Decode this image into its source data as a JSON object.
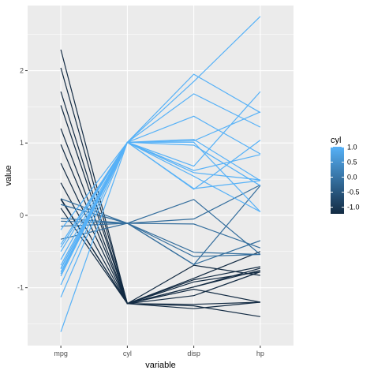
{
  "chart_data": {
    "type": "line",
    "subtype": "parallel-coordinates",
    "xlabel": "variable",
    "ylabel": "value",
    "categories": [
      "mpg",
      "cyl",
      "disp",
      "hp"
    ],
    "ylim": [
      -1.8,
      2.9
    ],
    "yticks": [
      -1,
      0,
      1,
      2
    ],
    "ytick_labels": [
      "-1",
      "0",
      "1",
      "2"
    ],
    "grid": true,
    "panel_background": "#ebebeb",
    "legend": {
      "title": "cyl",
      "placement": "right",
      "range": [
        -1.22,
        1.01
      ],
      "ticks": [
        1.0,
        0.5,
        0.0,
        -0.5,
        -1.0
      ],
      "tick_labels": [
        "1.0",
        "0.5",
        "0.0",
        "-0.5",
        "-1.0"
      ],
      "color_low": "#132B43",
      "color_high": "#56B1F7"
    },
    "series": [
      {
        "cyl": 1.01,
        "values": [
          -1.61,
          1.01,
          1.95,
          1.42
        ]
      },
      {
        "cyl": 1.01,
        "values": [
          -1.13,
          1.01,
          1.85,
          2.75
        ]
      },
      {
        "cyl": 1.01,
        "values": [
          -0.96,
          1.01,
          1.68,
          1.22
        ]
      },
      {
        "cyl": 1.01,
        "values": [
          -0.84,
          1.01,
          1.37,
          0.85
        ]
      },
      {
        "cyl": 1.01,
        "values": [
          -0.81,
          1.01,
          1.05,
          0.48
        ]
      },
      {
        "cyl": 1.01,
        "values": [
          -0.78,
          1.01,
          1.03,
          1.43
        ]
      },
      {
        "cyl": 1.01,
        "values": [
          -0.74,
          1.01,
          0.97,
          0.41
        ]
      },
      {
        "cyl": 1.01,
        "values": [
          -0.73,
          1.01,
          0.68,
          1.71
        ]
      },
      {
        "cyl": 1.01,
        "values": [
          -0.69,
          1.01,
          0.59,
          0.49
        ]
      },
      {
        "cyl": 1.01,
        "values": [
          -0.61,
          1.01,
          0.54,
          0.05
        ]
      },
      {
        "cyl": 1.01,
        "values": [
          -0.5,
          1.01,
          0.37,
          0.48
        ]
      },
      {
        "cyl": 1.01,
        "values": [
          -0.44,
          1.01,
          0.36,
          1.04
        ]
      },
      {
        "cyl": 1.01,
        "values": [
          -0.4,
          1.01,
          0.62,
          0.84
        ]
      },
      {
        "cyl": 1.01,
        "values": [
          -0.2,
          1.01,
          1.01,
          0.05
        ]
      },
      {
        "cyl": -0.11,
        "values": [
          0.15,
          -0.11,
          -0.57,
          -0.54
        ]
      },
      {
        "cyl": -0.11,
        "values": [
          0.15,
          -0.11,
          -0.51,
          -0.54
        ]
      },
      {
        "cyl": -0.11,
        "values": [
          0.23,
          -0.11,
          0.22,
          -0.54
        ]
      },
      {
        "cyl": -0.11,
        "values": [
          -0.33,
          -0.11,
          -0.05,
          0.42
        ]
      },
      {
        "cyl": -0.11,
        "values": [
          -0.15,
          -0.11,
          -0.68,
          -0.35
        ]
      },
      {
        "cyl": -0.11,
        "values": [
          -0.08,
          -0.11,
          -0.12,
          -0.45
        ]
      },
      {
        "cyl": -0.11,
        "values": [
          -0.04,
          -0.11,
          -0.68,
          0.41
        ]
      },
      {
        "cyl": -1.22,
        "values": [
          2.29,
          -1.22,
          -1.23,
          -1.2
        ]
      },
      {
        "cyl": -1.22,
        "values": [
          2.04,
          -1.22,
          -1.25,
          -1.4
        ]
      },
      {
        "cyl": -1.22,
        "values": [
          1.71,
          -1.22,
          -1.29,
          -1.2
        ]
      },
      {
        "cyl": -1.22,
        "values": [
          1.52,
          -1.22,
          -1.11,
          -0.78
        ]
      },
      {
        "cyl": -1.22,
        "values": [
          1.2,
          -1.22,
          -0.89,
          -0.71
        ]
      },
      {
        "cyl": -1.22,
        "values": [
          0.98,
          -1.22,
          -0.99,
          -0.73
        ]
      },
      {
        "cyl": -1.22,
        "values": [
          0.72,
          -1.22,
          -0.92,
          -0.78
        ]
      },
      {
        "cyl": -1.22,
        "values": [
          0.45,
          -1.22,
          -1.02,
          -1.2
        ]
      },
      {
        "cyl": -1.22,
        "values": [
          0.23,
          -1.22,
          -0.69,
          -0.83
        ]
      },
      {
        "cyl": -1.22,
        "values": [
          0.22,
          -1.22,
          -0.87,
          -0.5
        ]
      },
      {
        "cyl": -1.22,
        "values": [
          0.1,
          -1.22,
          -0.99,
          -0.76
        ]
      }
    ]
  }
}
